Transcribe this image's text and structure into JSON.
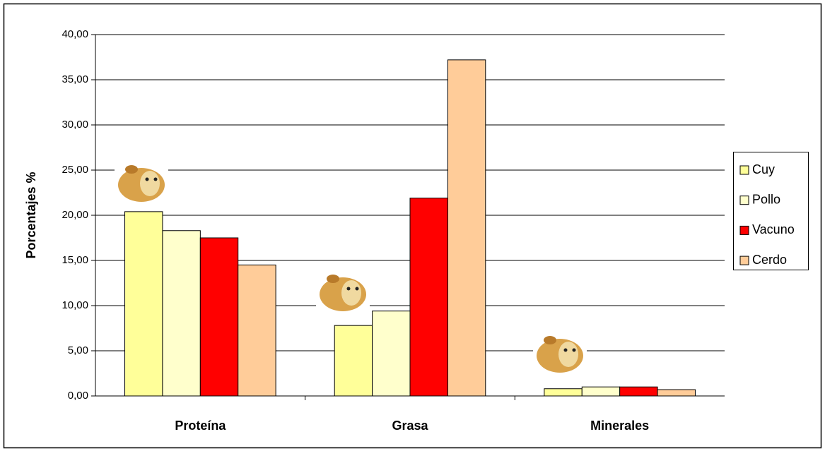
{
  "chart_data": {
    "type": "bar",
    "y_label": "Porcentajes %",
    "categories": [
      "Proteína",
      "Grasa",
      "Minerales"
    ],
    "series": [
      {
        "name": "Cuy",
        "color": "#ffff99",
        "values": [
          20.4,
          7.8,
          0.8
        ]
      },
      {
        "name": "Pollo",
        "color": "#ffffcc",
        "values": [
          18.3,
          9.4,
          1.0
        ]
      },
      {
        "name": "Vacuno",
        "color": "#ff0000",
        "values": [
          17.5,
          21.9,
          1.0
        ]
      },
      {
        "name": "Cerdo",
        "color": "#ffcc99",
        "values": [
          14.5,
          37.2,
          0.7
        ]
      }
    ],
    "ylim": [
      0,
      40
    ],
    "yticks": [
      {
        "value": 0,
        "label": "0,00"
      },
      {
        "value": 5,
        "label": "5,00"
      },
      {
        "value": 10,
        "label": "10,00"
      },
      {
        "value": 15,
        "label": "15,00"
      },
      {
        "value": 20,
        "label": "20,00"
      },
      {
        "value": 25,
        "label": "25,00"
      },
      {
        "value": 30,
        "label": "30,00"
      },
      {
        "value": 35,
        "label": "35,00"
      },
      {
        "value": 40,
        "label": "40,00"
      }
    ],
    "grid": true,
    "legend": "right"
  }
}
